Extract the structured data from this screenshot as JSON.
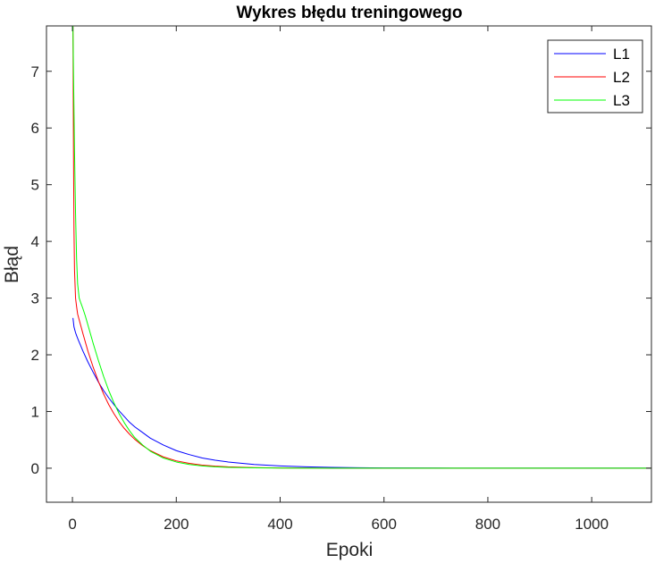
{
  "chart_data": {
    "type": "line",
    "title": "Wykres błędu treningowego",
    "xlabel": "Epoki",
    "ylabel": "Błąd",
    "xlim": [
      -50,
      1115
    ],
    "ylim": [
      -0.6,
      7.8
    ],
    "xticks": [
      0,
      200,
      400,
      600,
      800,
      1000
    ],
    "yticks": [
      0,
      1,
      2,
      3,
      4,
      5,
      6,
      7
    ],
    "grid": false,
    "legend_position": "top-right",
    "series": [
      {
        "name": "L1",
        "color": "#0000ff",
        "x": [
          1,
          3,
          6,
          10,
          15,
          20,
          30,
          40,
          50,
          60,
          70,
          80,
          90,
          100,
          110,
          120,
          135,
          150,
          175,
          200,
          225,
          250,
          275,
          300,
          350,
          400,
          450,
          500,
          550,
          600,
          700,
          800,
          900,
          1000,
          1115
        ],
        "y": [
          2.65,
          2.49,
          2.39,
          2.29,
          2.18,
          2.07,
          1.87,
          1.69,
          1.52,
          1.37,
          1.24,
          1.12,
          1.01,
          0.91,
          0.81,
          0.73,
          0.63,
          0.53,
          0.41,
          0.31,
          0.24,
          0.18,
          0.14,
          0.11,
          0.066,
          0.04,
          0.024,
          0.015,
          0.009,
          0.005,
          0.002,
          0.001,
          0.0,
          0.0,
          0.0
        ]
      },
      {
        "name": "L2",
        "color": "#ff0000",
        "x": [
          1,
          2,
          3,
          4,
          6,
          8,
          10,
          15,
          20,
          30,
          40,
          50,
          60,
          70,
          80,
          90,
          100,
          110,
          120,
          135,
          150,
          175,
          200,
          225,
          250,
          275,
          300,
          350,
          400,
          450,
          500,
          600,
          700,
          800,
          1000,
          1115
        ],
        "y": [
          7.8,
          5.6,
          4.2,
          3.5,
          3.0,
          2.85,
          2.72,
          2.55,
          2.38,
          2.06,
          1.78,
          1.53,
          1.31,
          1.12,
          0.96,
          0.82,
          0.7,
          0.6,
          0.51,
          0.4,
          0.31,
          0.2,
          0.13,
          0.085,
          0.055,
          0.036,
          0.024,
          0.01,
          0.004,
          0.002,
          0.001,
          0.0,
          0.0,
          0.0,
          0.0,
          0.0
        ]
      },
      {
        "name": "L3",
        "color": "#00ff00",
        "x": [
          1,
          2,
          4,
          6,
          8,
          10,
          13,
          16,
          20,
          25,
          30,
          40,
          50,
          60,
          70,
          80,
          90,
          100,
          110,
          120,
          135,
          150,
          175,
          200,
          225,
          250,
          275,
          300,
          350,
          400,
          450,
          500,
          600,
          700,
          800,
          1000,
          1115
        ],
        "y": [
          7.8,
          7.0,
          5.6,
          4.5,
          3.7,
          3.25,
          3.0,
          2.92,
          2.82,
          2.68,
          2.52,
          2.2,
          1.9,
          1.62,
          1.37,
          1.15,
          0.96,
          0.8,
          0.66,
          0.54,
          0.41,
          0.3,
          0.18,
          0.11,
          0.065,
          0.04,
          0.024,
          0.015,
          0.006,
          0.002,
          0.001,
          0.0,
          0.0,
          0.0,
          0.0,
          0.0,
          0.0
        ]
      }
    ]
  }
}
